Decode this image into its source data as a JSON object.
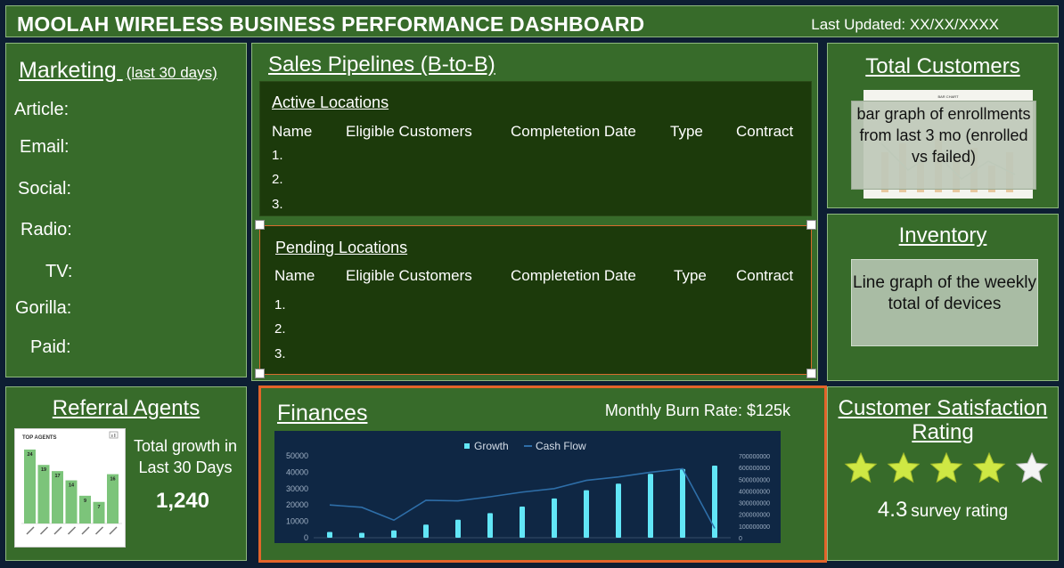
{
  "header": {
    "title": "MOOLAH WIRELESS BUSINESS PERFORMANCE DASHBOARD",
    "last_updated": "Last Updated: XX/XX/XXXX"
  },
  "marketing": {
    "title": "Marketing ",
    "subtitle": "(last 30 days)",
    "channels": [
      "Article:",
      "Email:",
      "Social:",
      "Radio:",
      "TV:",
      "Gorilla:",
      "Paid:"
    ]
  },
  "sales": {
    "title": "Sales Pipelines (B-to-B)",
    "active": {
      "title": "Active Locations",
      "columns": [
        "Name",
        "Eligible Customers",
        "Completetion Date",
        "Type",
        "Contract"
      ],
      "rows": [
        "1.",
        "2.",
        "3."
      ]
    },
    "pending": {
      "title": "Pending  Locations",
      "columns": [
        "Name",
        "Eligible Customers",
        "Completetion Date",
        "Type",
        "Contract"
      ],
      "rows": [
        "1.",
        "2.",
        "3."
      ]
    }
  },
  "total_customers": {
    "title": "Total Customers",
    "thumbnail_title": "BAR CHART",
    "note": "bar graph of enrollments from last 3 mo (enrolled vs failed)"
  },
  "inventory": {
    "title": "Inventory",
    "note": "Line graph of the weekly total of devices"
  },
  "referral": {
    "title": "Referral Agents",
    "growth_label": "Total growth in Last 30 Days",
    "growth_value": "1,240",
    "card": {
      "title": "TOP AGENTS",
      "values": [
        24,
        19,
        17,
        14,
        9,
        7,
        16
      ]
    }
  },
  "finances": {
    "title": "Finances",
    "burn_rate": "Monthly Burn Rate: $125k"
  },
  "satisfaction": {
    "title": "Customer Satisfaction Rating",
    "rating": "4.3",
    "rating_label": "survey rating",
    "stars": 4,
    "stars_total": 5,
    "star_color": "#cfe844"
  },
  "chart_data": [
    {
      "type": "bar",
      "title": "TOP AGENTS",
      "values": [
        24,
        19,
        17,
        14,
        9,
        7,
        16
      ],
      "bar_color": "#7cc47a"
    },
    {
      "type": "bar",
      "series": [
        {
          "name": "Growth",
          "type": "bar",
          "axis": "left",
          "values": [
            3500,
            3000,
            4500,
            8000,
            11000,
            15000,
            19000,
            24000,
            29000,
            33000,
            39000,
            42000,
            44000
          ],
          "color": "#62e6f7"
        },
        {
          "name": "Cash Flow",
          "type": "line",
          "axis": "right",
          "values": [
            280000000,
            260000000,
            150000000,
            320000000,
            315000000,
            350000000,
            390000000,
            420000000,
            490000000,
            520000000,
            560000000,
            590000000,
            80000000
          ],
          "color": "#2e6ea8"
        }
      ],
      "y_left_ticks": [
        "0",
        "10000",
        "20000",
        "30000",
        "40000",
        "50000"
      ],
      "y_left_lim": [
        0,
        50000
      ],
      "y_right_ticks": [
        "0",
        "100000000",
        "200000000",
        "300000000",
        "400000000",
        "500000000",
        "600000000",
        "700000000"
      ],
      "y_right_lim": [
        0,
        700000000
      ],
      "legend": "top"
    }
  ]
}
